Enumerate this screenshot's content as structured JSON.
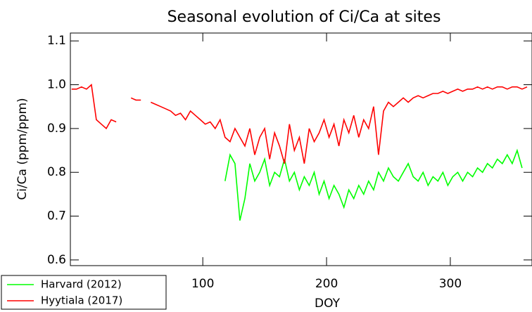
{
  "chart_data": {
    "type": "line",
    "title": "Seasonal evolution of Ci/Ca at sites",
    "x_label": "DOY",
    "y_label": "Ci/Ca (ppm/ppm)",
    "xlim": [
      -7,
      366
    ],
    "ylim": [
      0.587,
      1.118
    ],
    "xticks": [
      100,
      200,
      300
    ],
    "yticks": [
      0.6,
      0.7,
      0.8,
      0.9,
      {
        "value": 1.0,
        "label": "1.0"
      },
      1.1
    ],
    "legend": "bottom-left",
    "x": [
      -6,
      -2,
      2,
      6,
      10,
      14,
      18,
      22,
      26,
      30,
      34,
      38,
      42,
      46,
      50,
      54,
      58,
      62,
      66,
      70,
      74,
      78,
      82,
      86,
      90,
      94,
      98,
      102,
      106,
      110,
      114,
      118,
      122,
      126,
      130,
      134,
      138,
      142,
      146,
      150,
      154,
      158,
      162,
      166,
      170,
      174,
      178,
      182,
      186,
      190,
      194,
      198,
      202,
      206,
      210,
      214,
      218,
      222,
      226,
      230,
      234,
      238,
      242,
      246,
      250,
      254,
      258,
      262,
      266,
      270,
      274,
      278,
      282,
      286,
      290,
      294,
      298,
      302,
      306,
      310,
      314,
      318,
      322,
      326,
      330,
      334,
      338,
      342,
      346,
      350,
      354,
      358,
      362
    ],
    "series": [
      {
        "name": "Harvard (2012)",
        "color": "#00ff00",
        "values": [
          null,
          null,
          null,
          null,
          null,
          null,
          null,
          null,
          null,
          null,
          null,
          null,
          null,
          null,
          null,
          null,
          null,
          null,
          null,
          null,
          null,
          null,
          null,
          null,
          null,
          null,
          null,
          null,
          null,
          null,
          null,
          0.78,
          0.84,
          0.82,
          0.69,
          0.74,
          0.82,
          0.78,
          0.8,
          0.83,
          0.77,
          0.8,
          0.79,
          0.83,
          0.78,
          0.8,
          0.76,
          0.79,
          0.77,
          0.8,
          0.75,
          0.78,
          0.74,
          0.77,
          0.75,
          0.72,
          0.76,
          0.74,
          0.77,
          0.75,
          0.78,
          0.76,
          0.8,
          0.78,
          0.81,
          0.79,
          0.78,
          0.8,
          0.82,
          0.79,
          0.78,
          0.8,
          0.77,
          0.79,
          0.78,
          0.8,
          0.77,
          0.79,
          0.8,
          0.78,
          0.8,
          0.79,
          0.81,
          0.8,
          0.82,
          0.81,
          0.83,
          0.82,
          0.84,
          0.82,
          0.85,
          0.81,
          null
        ]
      },
      {
        "name": "Hyytiala (2017)",
        "color": "#ff0000",
        "values": [
          0.99,
          0.99,
          0.995,
          0.99,
          1.0,
          0.92,
          0.91,
          0.9,
          0.92,
          0.915,
          null,
          null,
          0.97,
          0.965,
          0.965,
          null,
          0.96,
          0.955,
          0.95,
          0.945,
          0.94,
          0.93,
          0.935,
          0.92,
          0.94,
          0.93,
          0.92,
          0.91,
          0.915,
          0.9,
          0.92,
          0.88,
          0.87,
          0.9,
          0.88,
          0.86,
          0.9,
          0.84,
          0.88,
          0.9,
          0.83,
          0.89,
          0.86,
          0.82,
          0.91,
          0.85,
          0.88,
          0.82,
          0.9,
          0.87,
          0.89,
          0.92,
          0.88,
          0.91,
          0.86,
          0.92,
          0.89,
          0.93,
          0.88,
          0.92,
          0.9,
          0.95,
          0.84,
          0.94,
          0.96,
          0.95,
          0.96,
          0.97,
          0.96,
          0.97,
          0.975,
          0.97,
          0.975,
          0.98,
          0.98,
          0.985,
          0.98,
          0.985,
          0.99,
          0.985,
          0.99,
          0.99,
          0.995,
          0.99,
          0.995,
          0.99,
          0.995,
          0.995,
          0.99,
          0.995,
          0.995,
          0.99,
          0.995
        ]
      }
    ]
  }
}
